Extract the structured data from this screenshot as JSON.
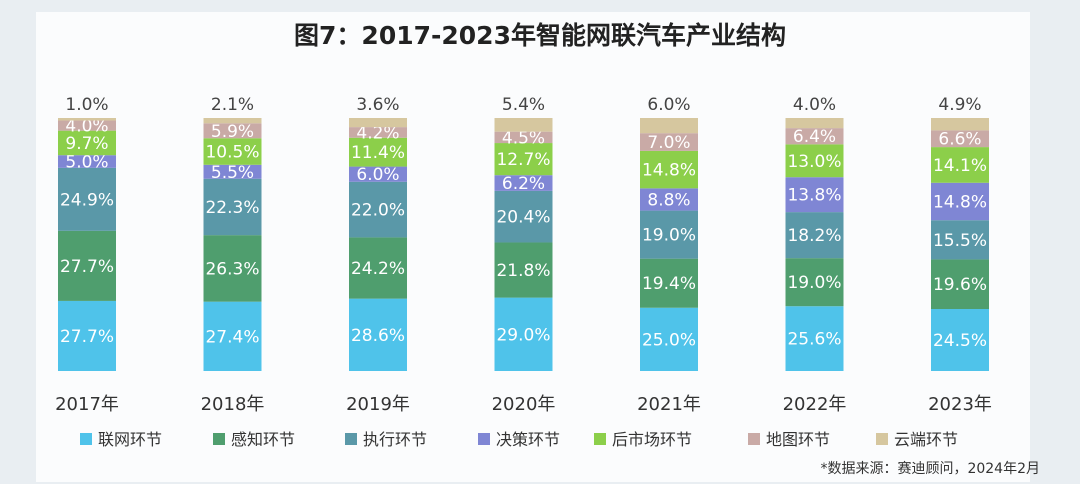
{
  "chart_data": {
    "type": "bar",
    "stacked": true,
    "title": "图7：2017-2023年智能网联汽车产业结构",
    "categories": [
      "2017年",
      "2018年",
      "2019年",
      "2020年",
      "2021年",
      "2022年",
      "2023年"
    ],
    "ylim": [
      0,
      100
    ],
    "unit": "%",
    "grid": false,
    "legend_position": "bottom",
    "series": [
      {
        "name": "联网环节",
        "color": "#4fc3ea",
        "values": [
          27.7,
          27.4,
          28.6,
          29.0,
          25.0,
          25.6,
          24.5
        ]
      },
      {
        "name": "感知环节",
        "color": "#4f9e6e",
        "values": [
          27.7,
          26.3,
          24.2,
          21.8,
          19.4,
          19.0,
          19.6
        ]
      },
      {
        "name": "执行环节",
        "color": "#5a98a8",
        "values": [
          24.9,
          22.3,
          22.0,
          20.4,
          19.0,
          18.2,
          15.5
        ]
      },
      {
        "name": "决策环节",
        "color": "#7f86d4",
        "values": [
          5.0,
          5.5,
          6.0,
          6.2,
          8.8,
          13.8,
          14.8
        ]
      },
      {
        "name": "后市场环节",
        "color": "#8ccf4a",
        "values": [
          9.7,
          10.5,
          11.4,
          12.7,
          14.8,
          13.0,
          14.1
        ]
      },
      {
        "name": "地图环节",
        "color": "#c9aaa6",
        "values": [
          4.0,
          5.9,
          4.2,
          4.5,
          7.0,
          6.4,
          6.6
        ]
      },
      {
        "name": "云端环节",
        "color": "#d6c79f",
        "values": [
          1.0,
          2.1,
          3.6,
          5.4,
          6.0,
          4.0,
          4.9
        ]
      }
    ]
  },
  "source": "*数据来源：赛迪顾问，2024年2月"
}
